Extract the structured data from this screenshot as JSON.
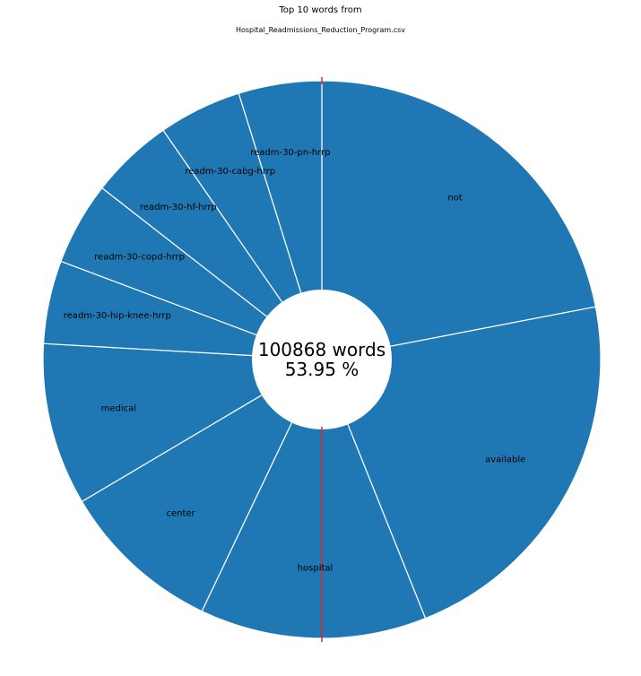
{
  "chart_data": {
    "type": "pie",
    "title": "Top 10 words from",
    "subtitle": "Hospital_Readmissions_Reduction_Program.csv",
    "categories": [
      "not",
      "available",
      "hospital",
      "center",
      "medical",
      "readm-30-hip-knee-hrrp",
      "readm-30-copd-hrrp",
      "readm-30-hf-hrrp",
      "readm-30-cabg-hrrp",
      "readm-30-pn-hrrp"
    ],
    "values": [
      15050,
      15050,
      9000,
      6450,
      6450,
      3300,
      3300,
      3300,
      3300,
      3300
    ],
    "center_label": {
      "total": "100868 words",
      "percent": "53.95 %"
    },
    "colors": {
      "slice": "#1f77b4",
      "edge": "#ffffff",
      "marker": "#d62728",
      "hole": "#ffffff",
      "label": "#000000"
    }
  }
}
